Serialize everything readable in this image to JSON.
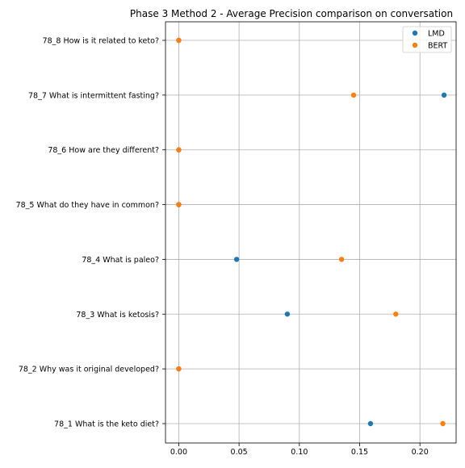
{
  "chart_data": {
    "type": "scatter",
    "title": "Phase 3 Method 2 - Average Precision comparison on conversation",
    "xlabel": "",
    "ylabel": "",
    "categories": [
      "78_1 What is the keto diet?",
      "78_2 Why was it original developed?",
      "78_3 What is ketosis?",
      "78_4 What is paleo?",
      "78_5 What do they have in common?",
      "78_6 How are they different?",
      "78_7 What is intermittent fasting?",
      "78_8 How is it related to keto?"
    ],
    "x_ticks": [
      "0.00",
      "0.05",
      "0.10",
      "0.15",
      "0.20"
    ],
    "x_tick_values": [
      0,
      0.05,
      0.1,
      0.15,
      0.2
    ],
    "xlim": [
      -0.011,
      0.23
    ],
    "grid": true,
    "legend_position": "top-right",
    "series": [
      {
        "name": "LMD",
        "color": "#1f77b4",
        "values": [
          0.159,
          0.0,
          0.09,
          0.048,
          0.0,
          0.0,
          0.22,
          0.0
        ]
      },
      {
        "name": "BERT",
        "color": "#ff7f0e",
        "values": [
          0.219,
          0.0,
          0.18,
          0.135,
          0.0,
          0.0,
          0.145,
          0.0
        ]
      }
    ]
  }
}
